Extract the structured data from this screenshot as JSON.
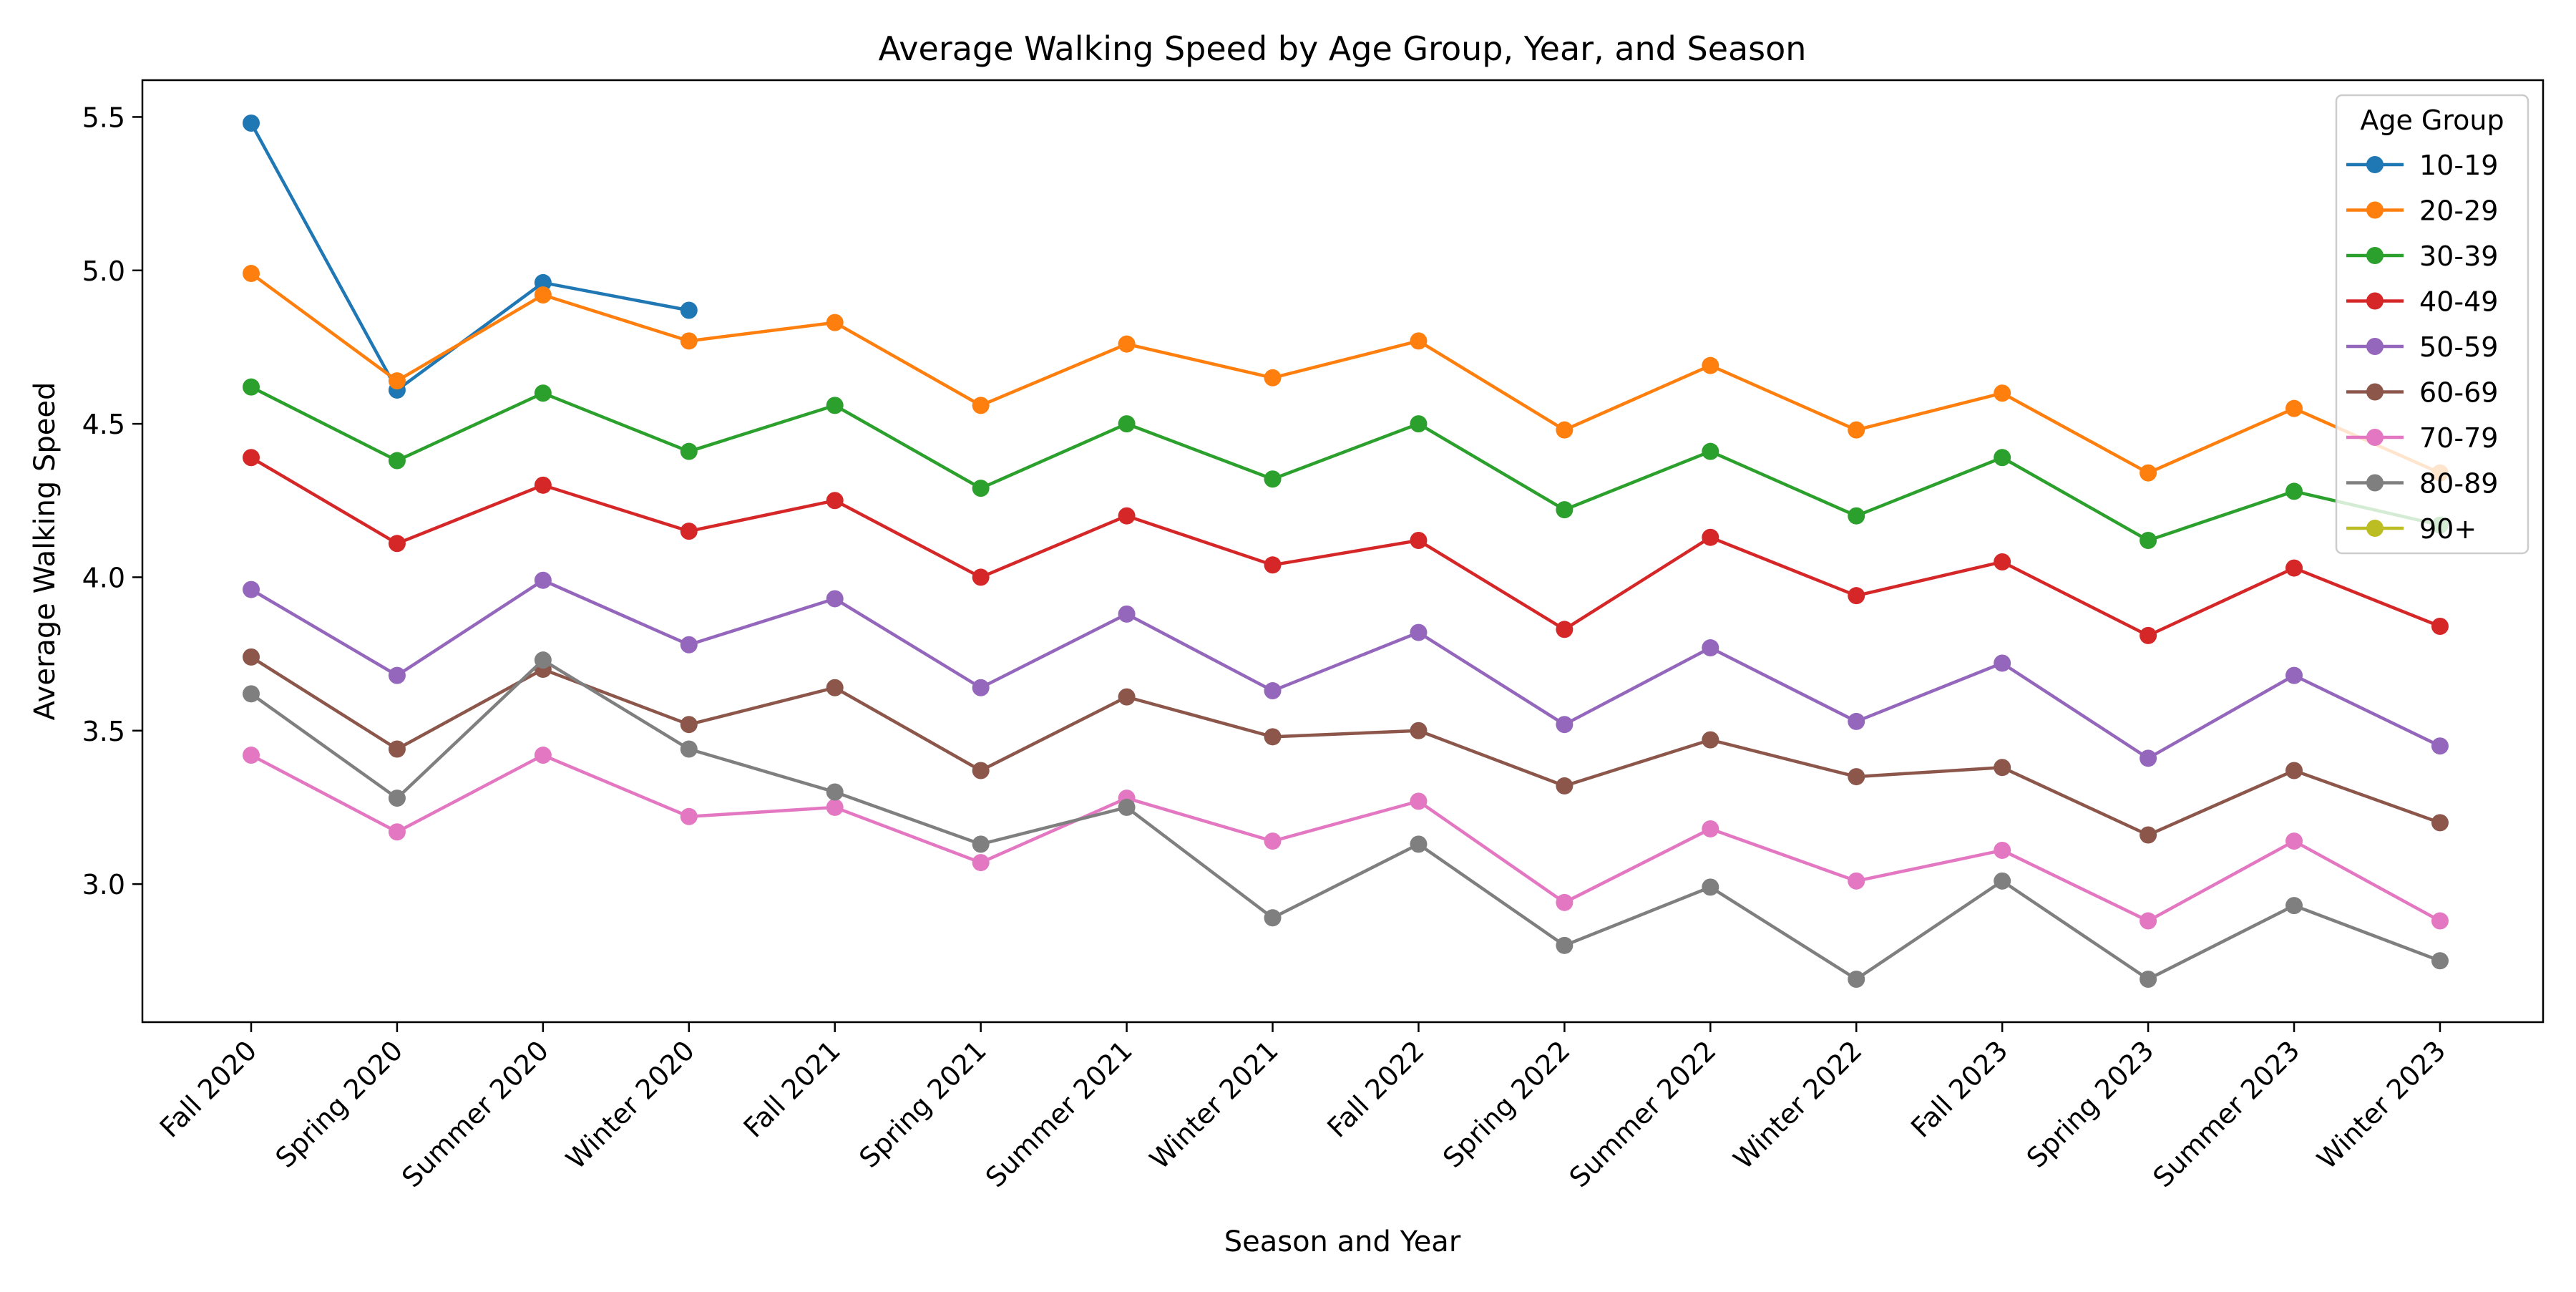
{
  "chart_data": {
    "type": "line",
    "title": "Average Walking Speed by Age Group, Year, and Season",
    "xlabel": "Season and Year",
    "ylabel": "Average Walking Speed",
    "categories": [
      "Fall 2020",
      "Spring 2020",
      "Summer 2020",
      "Winter 2020",
      "Fall 2021",
      "Spring 2021",
      "Summer 2021",
      "Winter 2021",
      "Fall 2022",
      "Spring 2022",
      "Summer 2022",
      "Winter 2022",
      "Fall 2023",
      "Spring 2023",
      "Summer 2023",
      "Winter 2023"
    ],
    "ylim": [
      2.55,
      5.62
    ],
    "yticks": [
      3.0,
      3.5,
      4.0,
      4.5,
      5.0,
      5.5
    ],
    "ytick_labels": [
      "3.0",
      "3.5",
      "4.0",
      "4.5",
      "5.0",
      "5.5"
    ],
    "grid": false,
    "legend": {
      "title": "Age Group",
      "placement": "top-right"
    },
    "series": [
      {
        "name": "10-19",
        "color": "#1f77b4",
        "values": [
          5.48,
          4.61,
          4.96,
          4.87,
          null,
          null,
          null,
          null,
          null,
          null,
          null,
          null,
          null,
          null,
          null,
          null
        ]
      },
      {
        "name": "20-29",
        "color": "#ff7f0e",
        "values": [
          4.99,
          4.64,
          4.92,
          4.77,
          4.83,
          4.56,
          4.76,
          4.65,
          4.77,
          4.48,
          4.69,
          4.48,
          4.6,
          4.34,
          4.55,
          4.34
        ]
      },
      {
        "name": "30-39",
        "color": "#2ca02c",
        "values": [
          4.62,
          4.38,
          4.6,
          4.41,
          4.56,
          4.29,
          4.5,
          4.32,
          4.5,
          4.22,
          4.41,
          4.2,
          4.39,
          4.12,
          4.28,
          4.17
        ]
      },
      {
        "name": "40-49",
        "color": "#d62728",
        "values": [
          4.39,
          4.11,
          4.3,
          4.15,
          4.25,
          4.0,
          4.2,
          4.04,
          4.12,
          3.83,
          4.13,
          3.94,
          4.05,
          3.81,
          4.03,
          3.84
        ]
      },
      {
        "name": "50-59",
        "color": "#9467bd",
        "values": [
          3.96,
          3.68,
          3.99,
          3.78,
          3.93,
          3.64,
          3.88,
          3.63,
          3.82,
          3.52,
          3.77,
          3.53,
          3.72,
          3.41,
          3.68,
          3.45
        ]
      },
      {
        "name": "60-69",
        "color": "#8c564b",
        "values": [
          3.74,
          3.44,
          3.7,
          3.52,
          3.64,
          3.37,
          3.61,
          3.48,
          3.5,
          3.32,
          3.47,
          3.35,
          3.38,
          3.16,
          3.37,
          3.2
        ]
      },
      {
        "name": "70-79",
        "color": "#e377c2",
        "values": [
          3.42,
          3.17,
          3.42,
          3.22,
          3.25,
          3.07,
          3.28,
          3.14,
          3.27,
          2.94,
          3.18,
          3.01,
          3.11,
          2.88,
          3.14,
          2.88
        ]
      },
      {
        "name": "80-89",
        "color": "#7f7f7f",
        "values": [
          3.62,
          3.28,
          3.73,
          3.44,
          3.3,
          3.13,
          3.25,
          2.89,
          3.13,
          2.8,
          2.99,
          2.69,
          3.01,
          2.69,
          2.93,
          2.75
        ]
      },
      {
        "name": "90+",
        "color": "#bcbd22",
        "values": [
          null,
          null,
          null,
          null,
          null,
          null,
          null,
          null,
          null,
          null,
          null,
          null,
          null,
          null,
          null,
          null
        ]
      }
    ]
  }
}
